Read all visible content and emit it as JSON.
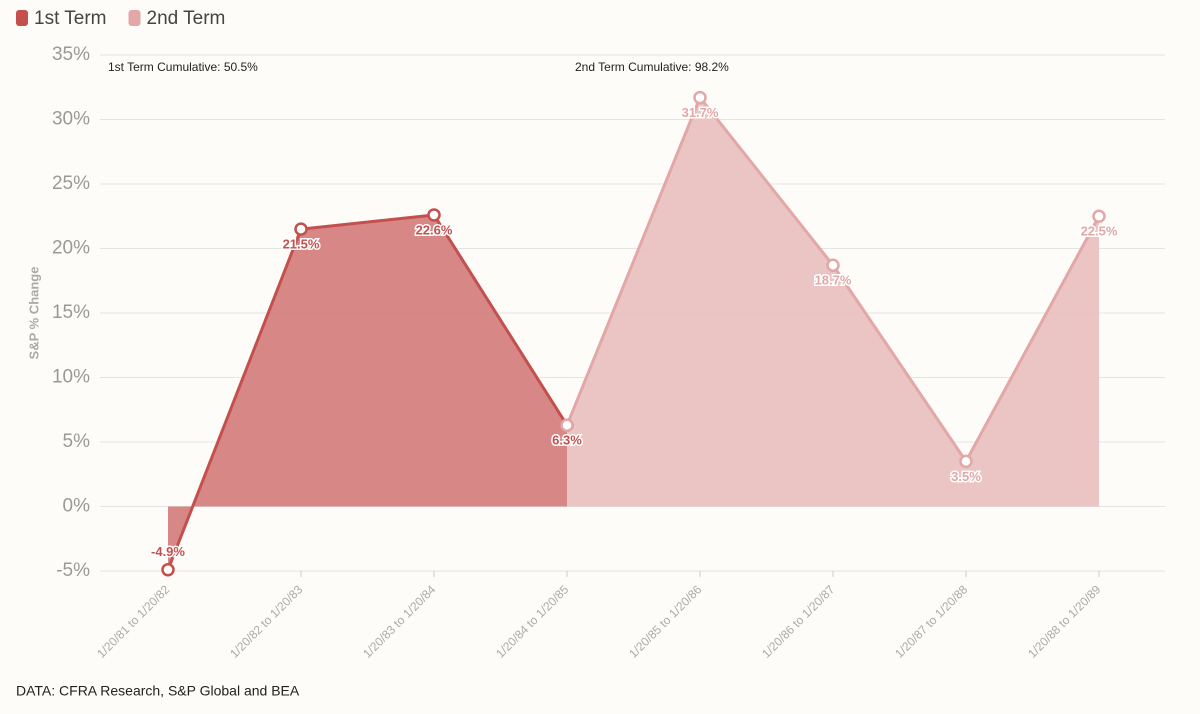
{
  "chart_data": {
    "type": "area",
    "y_label": "S&P % Change",
    "annotations": [
      "1st Term Cumulative: 50.5%",
      "2nd Term Cumulative: 98.2%"
    ],
    "source": "DATA: CFRA Research, S&P Global and BEA",
    "categories": [
      "1/20/81 to 1/20/82",
      "1/20/82 to 1/20/83",
      "1/20/83 to 1/20/84",
      "1/20/84 to 1/20/85",
      "1/20/85 to 1/20/86",
      "1/20/86 to 1/20/87",
      "1/20/87 to 1/20/88",
      "1/20/88 to 1/20/89"
    ],
    "series": [
      {
        "name": "1st Term",
        "color": "#c4504e",
        "fill": "#d4817f",
        "values": [
          -4.9,
          21.5,
          22.6,
          6.3,
          null,
          null,
          null,
          null
        ],
        "value_labels": [
          "-4.9%",
          "21.5%",
          "22.6%",
          "6.3%",
          null,
          null,
          null,
          null
        ]
      },
      {
        "name": "2nd Term",
        "color": "#e2a7a6",
        "fill": "#e9c2c1",
        "values": [
          null,
          null,
          null,
          6.3,
          31.7,
          18.7,
          3.5,
          22.5
        ],
        "value_labels": [
          null,
          null,
          null,
          null,
          "31.7%",
          "18.7%",
          "3.5%",
          "22.5%"
        ]
      }
    ],
    "ylim": [
      -5,
      35
    ],
    "yticks": [
      {
        "value": -5,
        "label": "-5%"
      },
      {
        "value": 0,
        "label": "0%"
      },
      {
        "value": 5,
        "label": "5%"
      },
      {
        "value": 10,
        "label": "10%"
      },
      {
        "value": 15,
        "label": "15%"
      },
      {
        "value": 20,
        "label": "20%"
      },
      {
        "value": 25,
        "label": "25%"
      },
      {
        "value": 30,
        "label": "30%"
      },
      {
        "value": 35,
        "label": "35%"
      }
    ],
    "grid": true,
    "legend": "top-left"
  }
}
